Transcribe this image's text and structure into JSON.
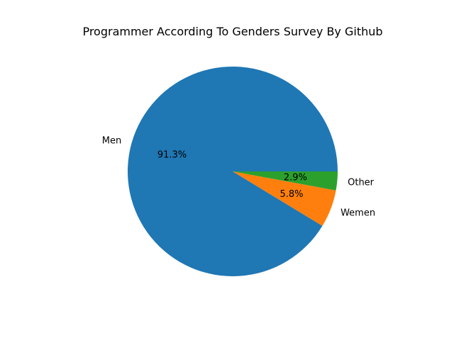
{
  "chart_data": {
    "type": "pie",
    "title": "Programmer According To Genders Survey By Github",
    "slices": [
      {
        "label": "Men",
        "value": 91.3,
        "pct_label": "91.3%",
        "color": "#1f77b4"
      },
      {
        "label": "Wemen",
        "value": 5.8,
        "pct_label": "5.8%",
        "color": "#ff7f0e"
      },
      {
        "label": "Other",
        "value": 2.9,
        "pct_label": "2.9%",
        "color": "#2ca02c"
      }
    ],
    "start_angle_deg": 0,
    "direction": "counterclockwise",
    "legend": "none"
  }
}
